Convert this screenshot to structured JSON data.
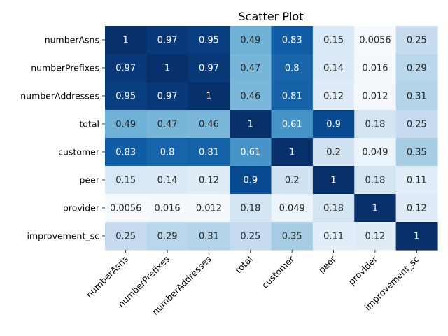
{
  "chart_data": {
    "type": "heatmap",
    "title": "Scatter Plot",
    "xlabel": "",
    "ylabel": "",
    "grid": false,
    "colormap": "Blues",
    "value_range": [
      0,
      1
    ],
    "row_labels": [
      "numberAsns",
      "numberPrefixes",
      "numberAddresses",
      "total",
      "customer",
      "peer",
      "provider",
      "improvement_sc"
    ],
    "col_labels": [
      "numberAsns",
      "numberPrefixes",
      "numberAddresses",
      "total",
      "customer",
      "peer",
      "provider",
      "improvement_sc"
    ],
    "values": [
      [
        1,
        0.97,
        0.95,
        0.49,
        0.83,
        0.15,
        0.0056,
        0.25
      ],
      [
        0.97,
        1,
        0.97,
        0.47,
        0.8,
        0.14,
        0.016,
        0.29
      ],
      [
        0.95,
        0.97,
        1,
        0.46,
        0.81,
        0.12,
        0.012,
        0.31
      ],
      [
        0.49,
        0.47,
        0.46,
        1,
        0.61,
        0.9,
        0.18,
        0.25
      ],
      [
        0.83,
        0.8,
        0.81,
        0.61,
        1,
        0.2,
        0.049,
        0.35
      ],
      [
        0.15,
        0.14,
        0.12,
        0.9,
        0.2,
        1,
        0.18,
        0.11
      ],
      [
        0.0056,
        0.016,
        0.012,
        0.18,
        0.049,
        0.18,
        1,
        0.12
      ],
      [
        0.25,
        0.29,
        0.31,
        0.25,
        0.35,
        0.11,
        0.12,
        1
      ]
    ]
  }
}
